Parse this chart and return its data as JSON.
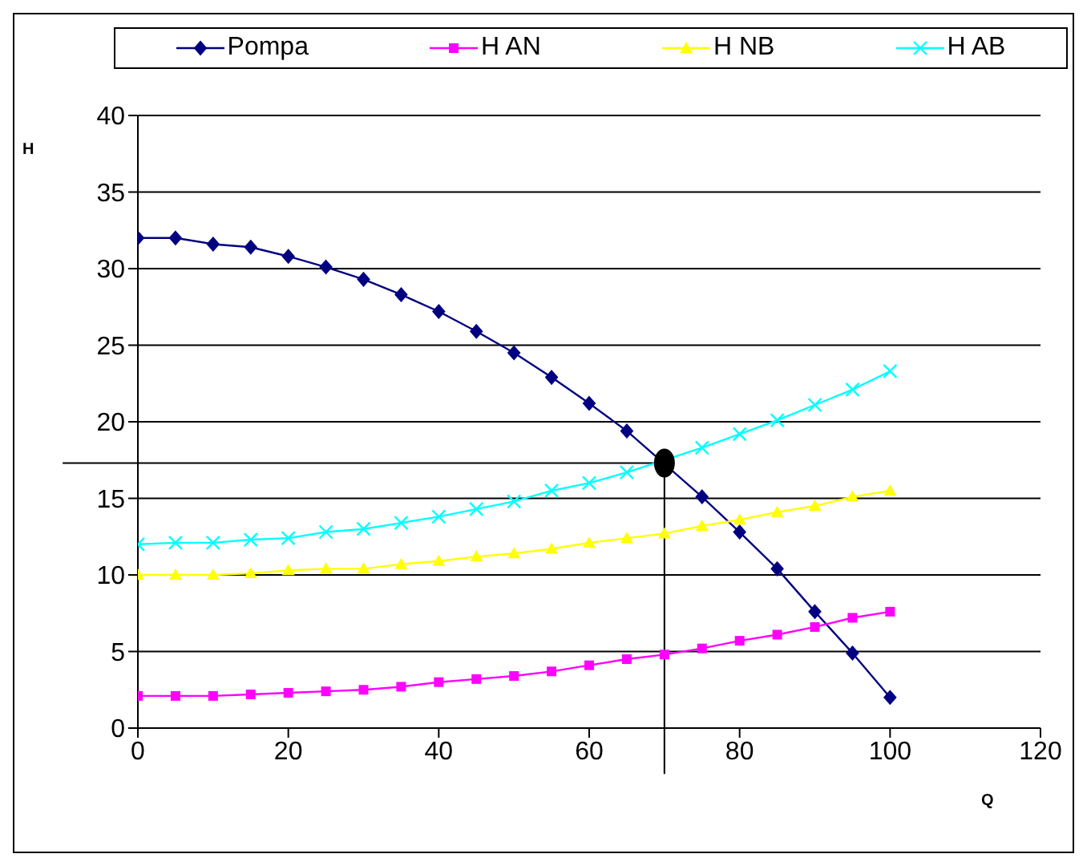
{
  "chart_data": {
    "type": "line",
    "xlabel": "Q",
    "ylabel": "H",
    "x": [
      0,
      5,
      10,
      15,
      20,
      25,
      30,
      35,
      40,
      45,
      50,
      55,
      60,
      65,
      70,
      75,
      80,
      85,
      90,
      95,
      100
    ],
    "series": [
      {
        "name": "Pompa",
        "color": "#000080",
        "marker": "diamond",
        "values": [
          32,
          32,
          31.6,
          31.4,
          30.8,
          30.1,
          29.3,
          28.3,
          27.2,
          25.9,
          24.5,
          22.9,
          21.2,
          19.4,
          null,
          15.1,
          12.8,
          10.4,
          7.6,
          4.9,
          2
        ]
      },
      {
        "name": "H AN",
        "color": "#ff00ff",
        "marker": "square",
        "values": [
          2.1,
          2.1,
          2.1,
          2.2,
          2.3,
          2.4,
          2.5,
          2.7,
          3,
          3.2,
          3.4,
          3.7,
          4.1,
          4.5,
          4.8,
          5.2,
          5.7,
          6.1,
          6.6,
          7.2,
          7.6
        ]
      },
      {
        "name": "H NB",
        "color": "#ffff00",
        "marker": "triangle",
        "values": [
          10,
          10,
          10,
          10.1,
          10.3,
          10.4,
          10.4,
          10.7,
          10.9,
          11.2,
          11.4,
          11.7,
          12.1,
          12.4,
          12.7,
          13.2,
          13.6,
          14.1,
          14.5,
          15.1,
          15.5
        ]
      },
      {
        "name": "H AB",
        "color": "#00ffff",
        "marker": "cross",
        "values": [
          12,
          12.1,
          12.1,
          12.3,
          12.4,
          12.8,
          13,
          13.4,
          13.8,
          14.3,
          14.8,
          15.5,
          16,
          16.7,
          null,
          18.3,
          19.2,
          20.1,
          21.1,
          22.1,
          23.3
        ]
      },
      {
        "type": "scatter",
        "color": "#000000",
        "marker": "circle",
        "x": [
          70
        ],
        "values": [
          17.3
        ]
      }
    ],
    "ref_lines": [
      {
        "axis": "y",
        "value": 17.3,
        "color": "#000000"
      },
      {
        "axis": "x",
        "value": 70,
        "color": "#000000"
      }
    ],
    "xlim": [
      0,
      120
    ],
    "xticks": [
      0,
      20,
      40,
      60,
      80,
      100,
      120
    ],
    "ylim": [
      0,
      40
    ],
    "yticks": [
      0,
      5,
      10,
      15,
      20,
      25,
      30,
      35,
      40
    ],
    "grid": "y",
    "legend": "top"
  }
}
